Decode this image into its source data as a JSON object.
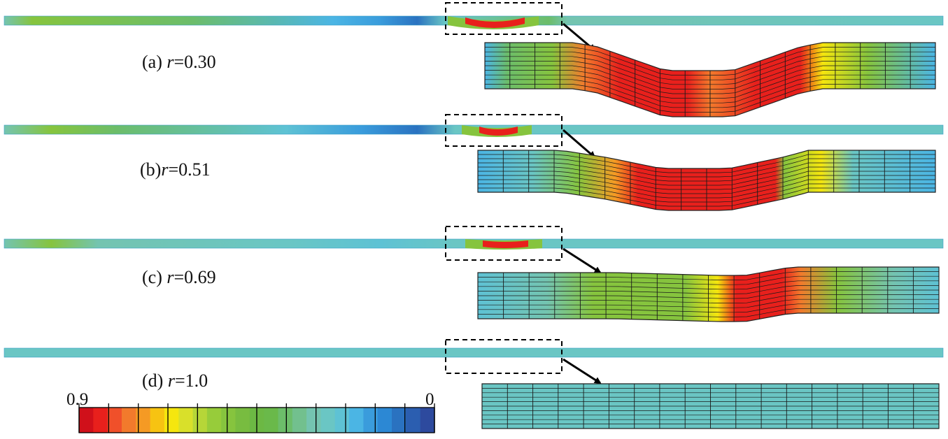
{
  "panels": [
    {
      "id": "a",
      "label_prefix": "(a) ",
      "label_var": "r",
      "label_value": "=0.30"
    },
    {
      "id": "b",
      "label_prefix": "(b)",
      "label_var": "r",
      "label_value": "=0.51"
    },
    {
      "id": "c",
      "label_prefix": "(c) ",
      "label_var": "r",
      "label_value": "=0.69"
    },
    {
      "id": "d",
      "label_prefix": "(d) ",
      "label_var": "r",
      "label_value": "=1.0"
    }
  ],
  "colorbar": {
    "max_label": "0.9",
    "min_label": "0",
    "colors": [
      "#d0101a",
      "#e8201c",
      "#f0502a",
      "#f27a2c",
      "#f59a24",
      "#f7c312",
      "#f5e60e",
      "#d9e02a",
      "#b6d638",
      "#97cc3a",
      "#86c43e",
      "#78bc40",
      "#6cb844",
      "#6ab94a",
      "#6cbd6a",
      "#72c08e",
      "#74c4b0",
      "#6ac6c4",
      "#5ec2d4",
      "#4bb5e4",
      "#3a9cdc",
      "#2c88d4",
      "#2a72c0",
      "#2b5eb0",
      "#2d4a9e"
    ]
  }
}
